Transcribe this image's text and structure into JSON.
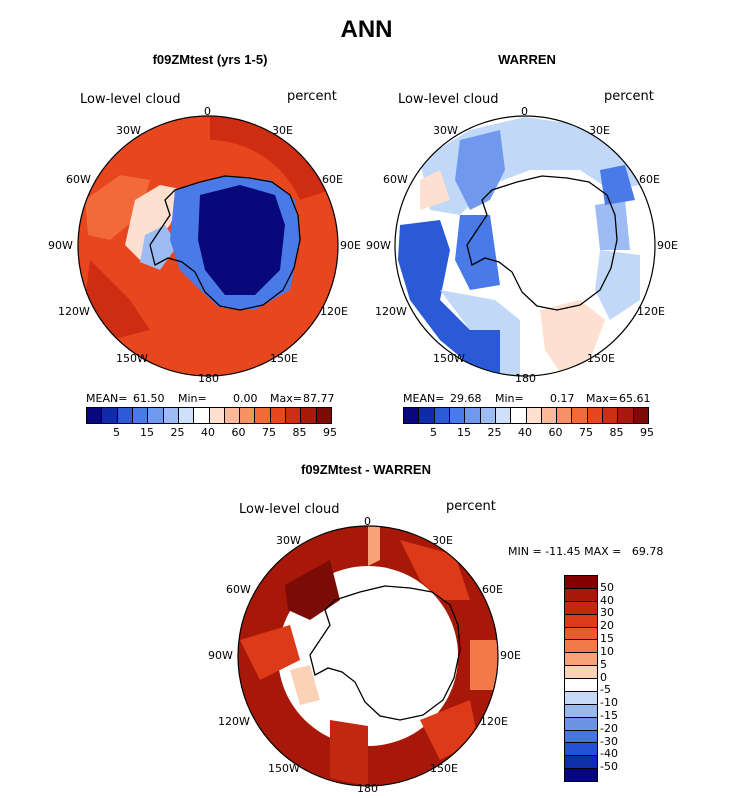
{
  "main_title": "ANN",
  "panels": [
    {
      "title": "f09ZMtest (yrs 1-5)",
      "field_label": "Low-level cloud",
      "units": "percent",
      "stats": {
        "mean_label": "MEAN=",
        "mean": "61.50",
        "min_label": "Min=",
        "min": "0.00",
        "max_label": "Max=",
        "max": "87.77"
      }
    },
    {
      "title": "WARREN",
      "field_label": "Low-level cloud",
      "units": "percent",
      "stats": {
        "mean_label": "MEAN=",
        "mean": "29.68",
        "min_label": "Min=",
        "min": "0.17",
        "max_label": "Max=",
        "max": "65.61"
      }
    },
    {
      "title": "f09ZMtest - WARREN",
      "field_label": "Low-level cloud",
      "units": "percent",
      "minmax": "MIN = -11.45 MAX =   69.78"
    }
  ],
  "longitude_labels": {
    "lon0": "0",
    "lon30e": "30E",
    "lon60e": "60E",
    "lon90e": "90E",
    "lon120e": "120E",
    "lon150e": "150E",
    "lon180": "180",
    "lon150w": "150W",
    "lon120w": "120W",
    "lon90w": "90W",
    "lon60w": "60W",
    "lon30w": "30W"
  },
  "abs_colorbar": {
    "tick_labels": [
      "5",
      "15",
      "25",
      "40",
      "60",
      "75",
      "85",
      "95"
    ],
    "colors": [
      "#08087a",
      "#0f2ba8",
      "#2a5ad6",
      "#4a7ae8",
      "#7099ee",
      "#9dbcf4",
      "#cfe0fa",
      "#ffffff",
      "#fde0cf",
      "#fbb998",
      "#f79265",
      "#f2693a",
      "#e8461e",
      "#cf2d12",
      "#a81a0c",
      "#7a0b06"
    ]
  },
  "diff_colorbar": {
    "tick_labels": [
      "50",
      "40",
      "30",
      "20",
      "15",
      "10",
      "5",
      "0",
      "-5",
      "-10",
      "-15",
      "-20",
      "-30",
      "-40",
      "-50"
    ],
    "colors": [
      "#800000",
      "#a81808",
      "#c22810",
      "#dc3a18",
      "#ea5a2e",
      "#f27a48",
      "#f7a37a",
      "#fbd2b6",
      "#ffffff",
      "#c6daf6",
      "#98b8ee",
      "#6c94e6",
      "#4874e0",
      "#2452d4",
      "#0e2eaa",
      "#06067e"
    ]
  }
}
